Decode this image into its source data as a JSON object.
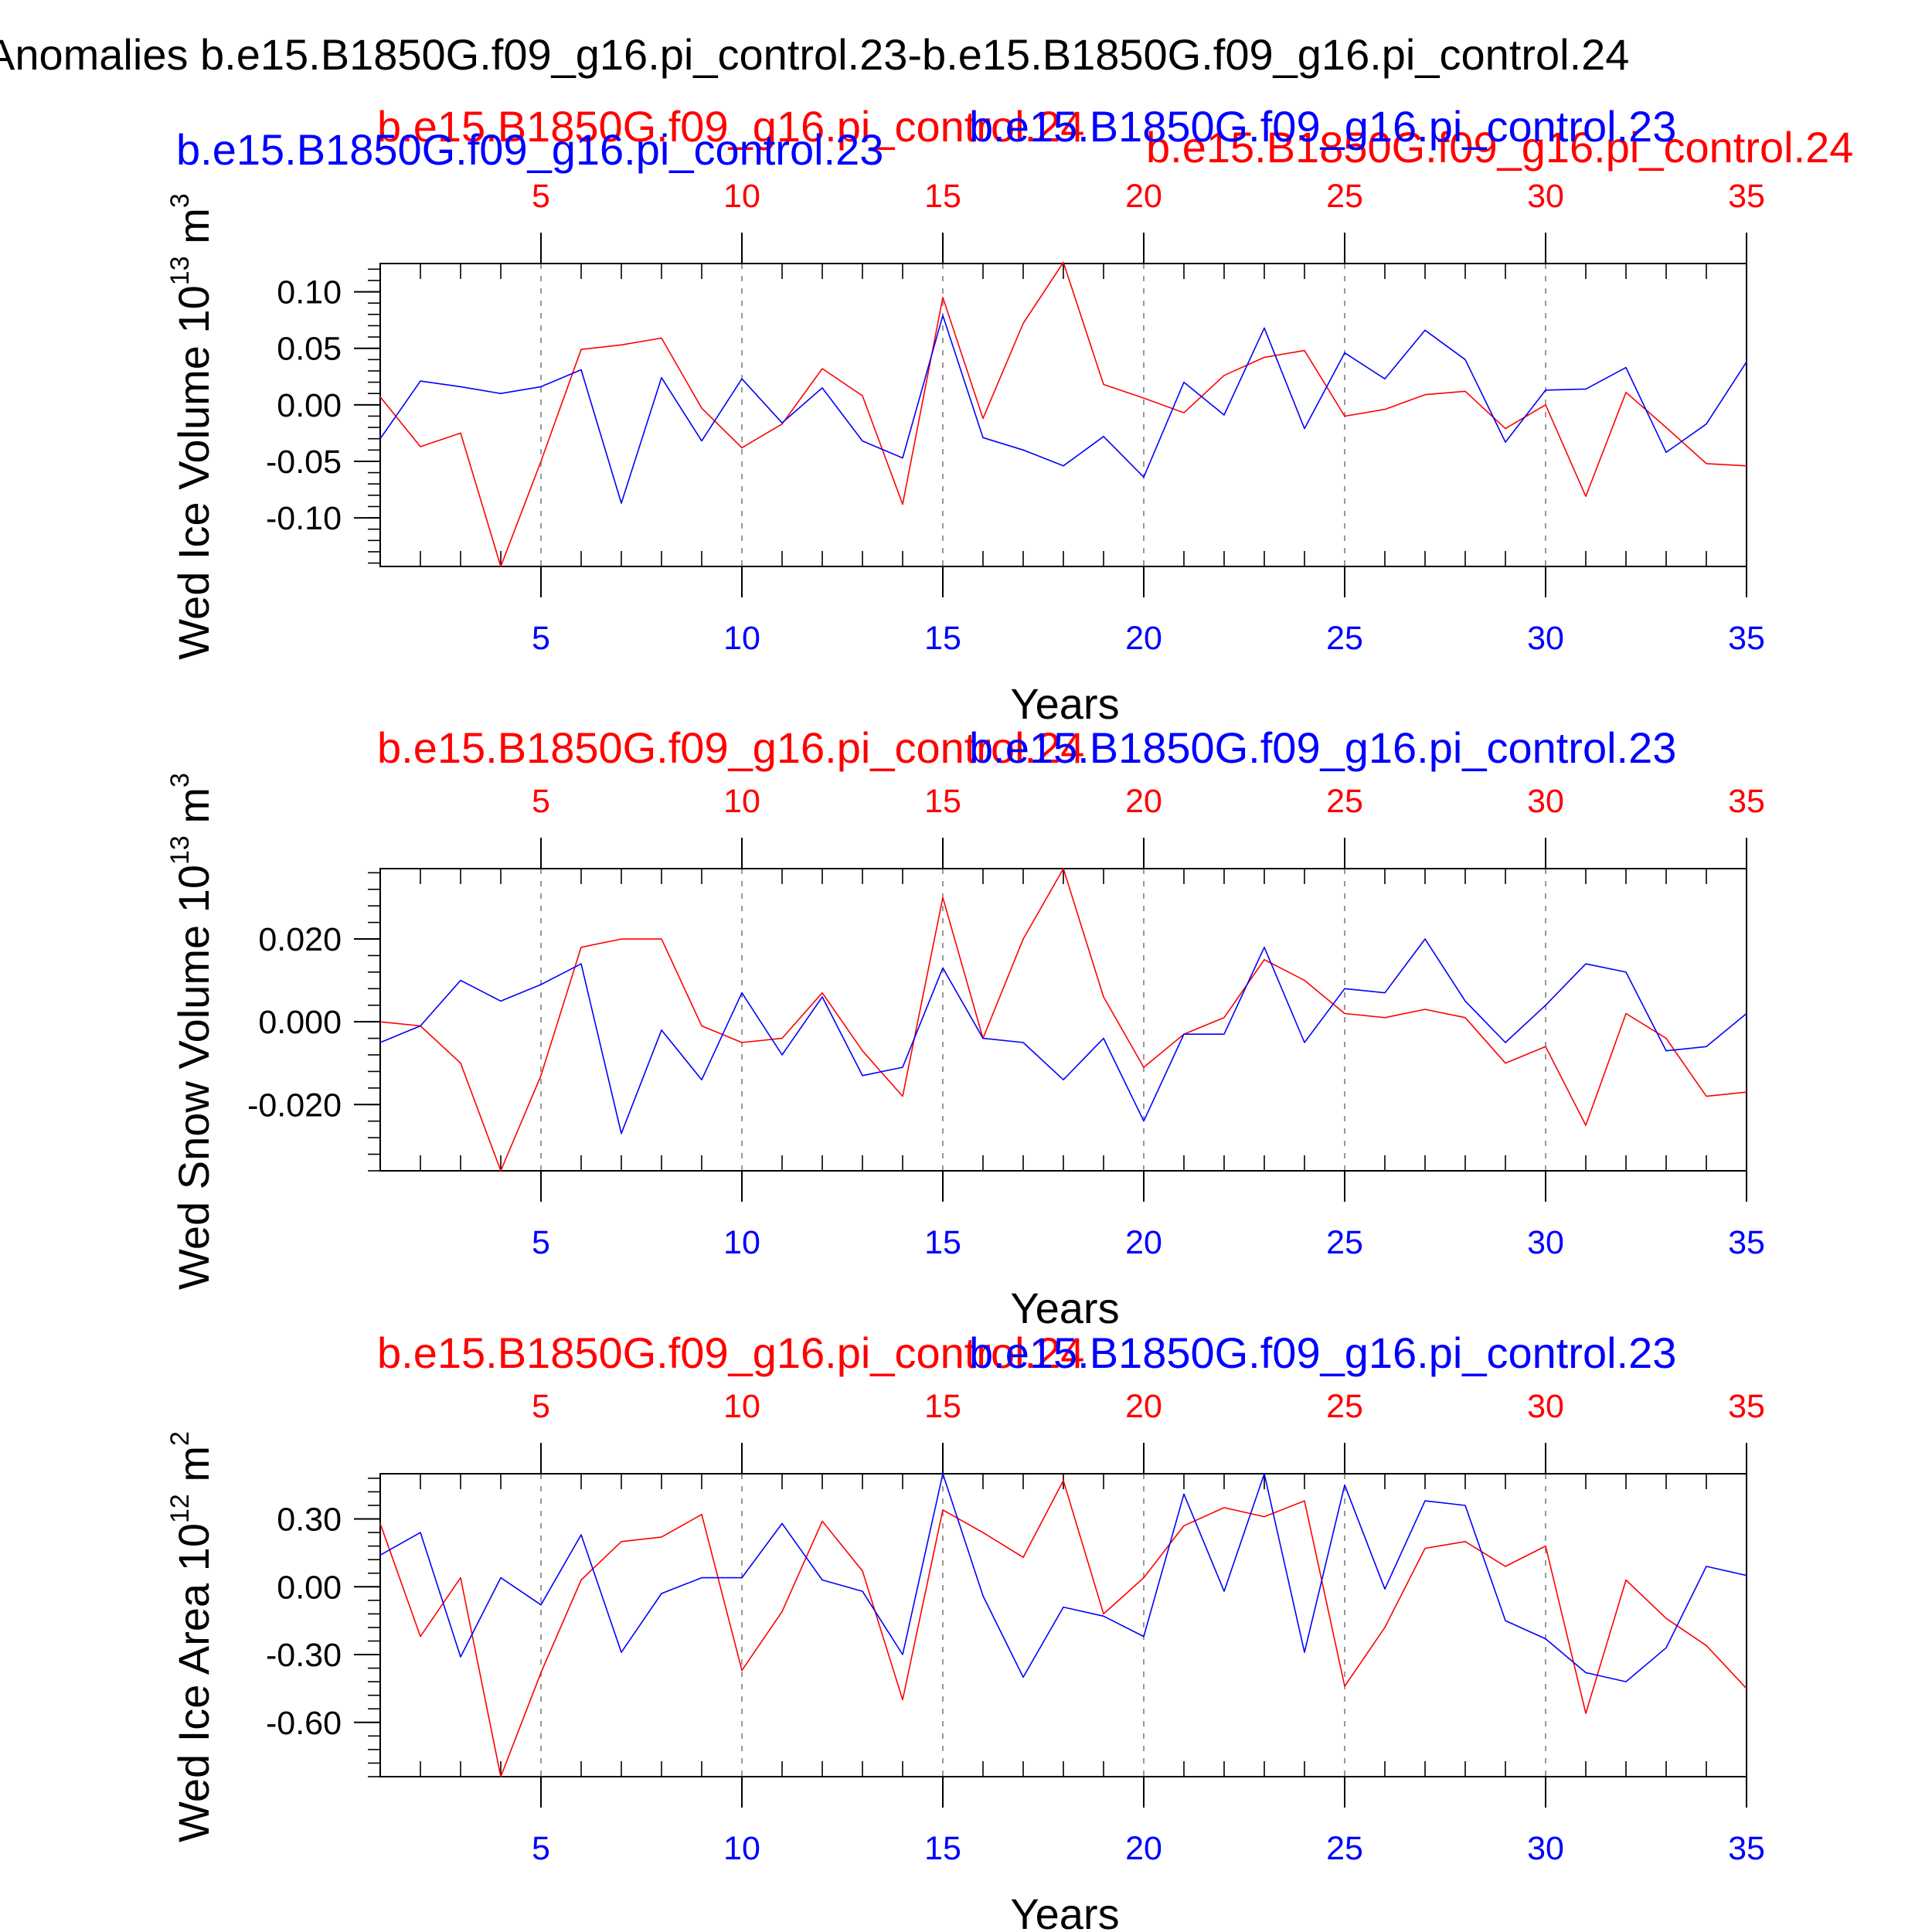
{
  "title": "Anomalies b.e15.B1850G.f09_g16.pi_control.23-b.e15.B1850G.f09_g16.pi_control.24",
  "colors": {
    "red_series": "#ff0000",
    "blue_series": "#0000ff",
    "axis": "#000000",
    "gridline": "#999999"
  },
  "chart_data": [
    {
      "type": "line",
      "ylabel": "Wed Ice Volume 10",
      "ylabel_sup_exp": "13",
      "ylabel_unit": " m",
      "ylabel_sup_unit": "3",
      "xlabel": "Years",
      "xlim": [
        1,
        35
      ],
      "ylim": [
        -0.143,
        0.125
      ],
      "x_ticks": [
        5,
        10,
        15,
        20,
        25,
        30,
        35
      ],
      "x_tick_labels": [
        "5",
        "10",
        "15",
        "20",
        "25",
        "30",
        "35"
      ],
      "y_ticks": [
        0.1,
        0.05,
        0.0,
        -0.05,
        -0.1
      ],
      "y_tick_labels": [
        "0.10",
        "0.05",
        "0.00",
        "-0.05",
        "-0.10"
      ],
      "grid": "vertical dashed at major x ticks",
      "series": [
        {
          "name": "b.e15.B1850G.f09_g16.pi_control.24",
          "color": "#ff0000",
          "x": [
            1,
            2,
            3,
            4,
            5,
            6,
            7,
            8,
            9,
            10,
            11,
            12,
            13,
            14,
            15,
            16,
            17,
            18,
            19,
            20,
            21,
            22,
            23,
            24,
            25,
            26,
            27,
            28,
            29,
            30,
            31,
            32,
            33,
            34,
            35
          ],
          "values": [
            0.007,
            -0.037,
            -0.025,
            -0.143,
            -0.05,
            0.049,
            0.053,
            0.059,
            -0.003,
            -0.038,
            -0.017,
            0.032,
            0.008,
            -0.088,
            0.095,
            -0.012,
            0.072,
            0.126,
            0.018,
            0.006,
            -0.007,
            0.026,
            0.042,
            0.048,
            -0.01,
            -0.004,
            0.009,
            0.012,
            -0.021,
            0.0,
            -0.081,
            0.011,
            -0.02,
            -0.052,
            -0.054
          ]
        },
        {
          "name": "b.e15.B1850G.f09_g16.pi_control.23",
          "color": "#0000ff",
          "x": [
            1,
            2,
            3,
            4,
            5,
            6,
            7,
            8,
            9,
            10,
            11,
            12,
            13,
            14,
            15,
            16,
            17,
            18,
            19,
            20,
            21,
            22,
            23,
            24,
            25,
            26,
            27,
            28,
            29,
            30,
            31,
            32,
            33,
            34,
            35
          ],
          "values": [
            -0.03,
            0.021,
            0.016,
            0.01,
            0.016,
            0.031,
            -0.087,
            0.024,
            -0.032,
            0.023,
            -0.016,
            0.015,
            -0.032,
            -0.047,
            0.079,
            -0.029,
            -0.04,
            -0.054,
            -0.028,
            -0.064,
            0.02,
            -0.009,
            0.068,
            -0.021,
            0.046,
            0.023,
            0.066,
            0.04,
            -0.033,
            0.013,
            0.014,
            0.033,
            -0.042,
            -0.017,
            0.038
          ]
        }
      ]
    },
    {
      "type": "line",
      "ylabel": "Wed Snow Volume 10",
      "ylabel_sup_exp": "13",
      "ylabel_unit": " m",
      "ylabel_sup_unit": "3",
      "xlabel": "Years",
      "xlim": [
        1,
        35
      ],
      "ylim": [
        -0.036,
        0.037
      ],
      "x_ticks": [
        5,
        10,
        15,
        20,
        25,
        30,
        35
      ],
      "x_tick_labels": [
        "5",
        "10",
        "15",
        "20",
        "25",
        "30",
        "35"
      ],
      "y_ticks": [
        0.02,
        0.0,
        -0.02
      ],
      "y_tick_labels": [
        "0.020",
        "0.000",
        "-0.020"
      ],
      "grid": "vertical dashed at major x ticks",
      "series": [
        {
          "name": "b.e15.B1850G.f09_g16.pi_control.24",
          "color": "#ff0000",
          "x": [
            1,
            2,
            3,
            4,
            5,
            6,
            7,
            8,
            9,
            10,
            11,
            12,
            13,
            14,
            15,
            16,
            17,
            18,
            19,
            20,
            21,
            22,
            23,
            24,
            25,
            26,
            27,
            28,
            29,
            30,
            31,
            32,
            33,
            34,
            35
          ],
          "values": [
            0.0,
            -0.001,
            -0.01,
            -0.036,
            -0.013,
            0.018,
            0.02,
            0.02,
            -0.001,
            -0.005,
            -0.004,
            0.007,
            -0.007,
            -0.018,
            0.03,
            -0.004,
            0.02,
            0.037,
            0.006,
            -0.011,
            -0.003,
            0.001,
            0.015,
            0.01,
            0.002,
            0.001,
            0.003,
            0.001,
            -0.01,
            -0.006,
            -0.025,
            0.002,
            -0.004,
            -0.018,
            -0.017
          ]
        },
        {
          "name": "b.e15.B1850G.f09_g16.pi_control.23",
          "color": "#0000ff",
          "x": [
            1,
            2,
            3,
            4,
            5,
            6,
            7,
            8,
            9,
            10,
            11,
            12,
            13,
            14,
            15,
            16,
            17,
            18,
            19,
            20,
            21,
            22,
            23,
            24,
            25,
            26,
            27,
            28,
            29,
            30,
            31,
            32,
            33,
            34,
            35
          ],
          "values": [
            -0.005,
            -0.001,
            0.01,
            0.005,
            0.009,
            0.014,
            -0.027,
            -0.002,
            -0.014,
            0.007,
            -0.008,
            0.006,
            -0.013,
            -0.011,
            0.013,
            -0.004,
            -0.005,
            -0.014,
            -0.004,
            -0.024,
            -0.003,
            -0.003,
            0.018,
            -0.005,
            0.008,
            0.007,
            0.02,
            0.005,
            -0.005,
            0.004,
            0.014,
            0.012,
            -0.007,
            -0.006,
            0.002
          ]
        }
      ]
    },
    {
      "type": "line",
      "ylabel": "Wed Ice Area 10",
      "ylabel_sup_exp": "12",
      "ylabel_unit": " m",
      "ylabel_sup_unit": "2",
      "xlabel": "Years",
      "xlim": [
        1,
        35
      ],
      "ylim": [
        -0.84,
        0.5
      ],
      "x_ticks": [
        5,
        10,
        15,
        20,
        25,
        30,
        35
      ],
      "x_tick_labels": [
        "5",
        "10",
        "15",
        "20",
        "25",
        "30",
        "35"
      ],
      "y_ticks": [
        0.3,
        0.0,
        -0.3,
        -0.6
      ],
      "y_tick_labels": [
        "0.30",
        "0.00",
        "-0.30",
        "-0.60"
      ],
      "grid": "vertical dashed at major x ticks",
      "series": [
        {
          "name": "b.e15.B1850G.f09_g16.pi_control.24",
          "color": "#ff0000",
          "x": [
            1,
            2,
            3,
            4,
            5,
            6,
            7,
            8,
            9,
            10,
            11,
            12,
            13,
            14,
            15,
            16,
            17,
            18,
            19,
            20,
            21,
            22,
            23,
            24,
            25,
            26,
            27,
            28,
            29,
            30,
            31,
            32,
            33,
            34,
            35
          ],
          "values": [
            0.28,
            -0.22,
            0.04,
            -0.84,
            -0.38,
            0.03,
            0.2,
            0.22,
            0.32,
            -0.37,
            -0.11,
            0.29,
            0.07,
            -0.5,
            0.34,
            0.24,
            0.13,
            0.47,
            -0.12,
            0.04,
            0.27,
            0.35,
            0.31,
            0.38,
            -0.44,
            -0.18,
            0.17,
            0.2,
            0.09,
            0.18,
            -0.56,
            0.03,
            -0.14,
            -0.26,
            -0.45
          ]
        },
        {
          "name": "b.e15.B1850G.f09_g16.pi_control.23",
          "color": "#0000ff",
          "x": [
            1,
            2,
            3,
            4,
            5,
            6,
            7,
            8,
            9,
            10,
            11,
            12,
            13,
            14,
            15,
            16,
            17,
            18,
            19,
            20,
            21,
            22,
            23,
            24,
            25,
            26,
            27,
            28,
            29,
            30,
            31,
            32,
            33,
            34,
            35
          ],
          "values": [
            0.14,
            0.24,
            -0.31,
            0.04,
            -0.08,
            0.23,
            -0.29,
            -0.03,
            0.04,
            0.04,
            0.28,
            0.03,
            -0.02,
            -0.3,
            0.5,
            -0.04,
            -0.4,
            -0.09,
            -0.13,
            -0.22,
            0.41,
            -0.02,
            0.5,
            -0.29,
            0.45,
            -0.01,
            0.38,
            0.36,
            -0.15,
            -0.23,
            -0.38,
            -0.42,
            -0.27,
            0.09,
            0.05
          ]
        }
      ]
    }
  ]
}
